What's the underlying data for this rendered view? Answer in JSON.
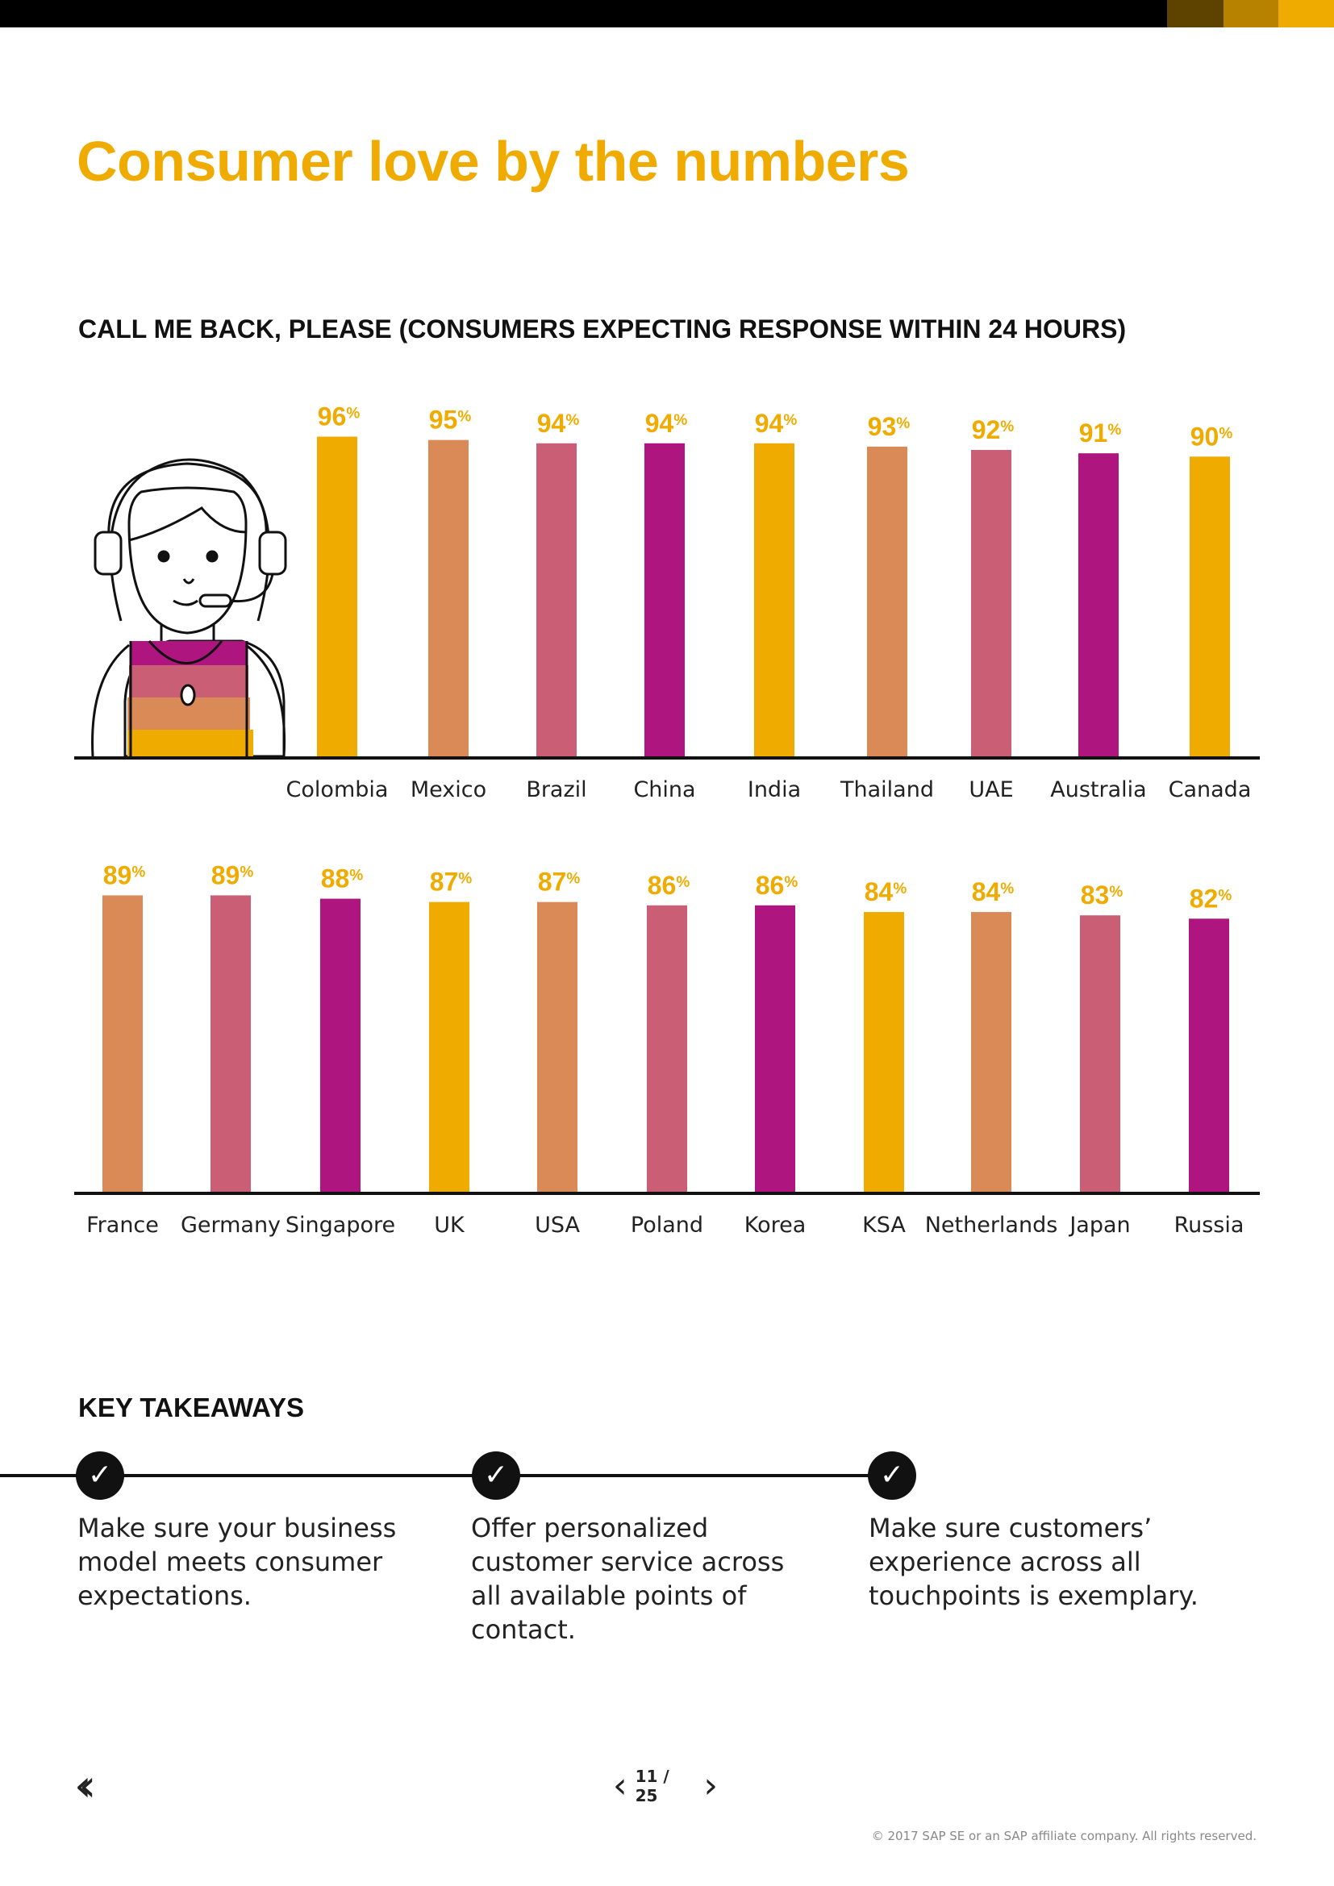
{
  "colors": {
    "accent": "#F0AB00",
    "orange": "#D98A57",
    "pink": "#C95E74",
    "magenta": "#AF157F",
    "gold_dark": "#5E4200",
    "gold_mid": "#B68200",
    "text": "#222222"
  },
  "header": {
    "title": "Consumer love by the numbers"
  },
  "illustration": {
    "icon": "customer-service-agent-icon"
  },
  "chart_data": [
    {
      "type": "bar",
      "title": "CALL ME BACK, PLEASE (CONSUMERS EXPECTING RESPONSE WITHIN 24 HOURS)",
      "categories": [
        "Colombia",
        "Mexico",
        "Brazil",
        "China",
        "India",
        "Thailand",
        "UAE",
        "Australia",
        "Canada"
      ],
      "values": [
        96,
        95,
        94,
        94,
        94,
        93,
        92,
        91,
        90
      ],
      "unit": "%",
      "xlabel": "",
      "ylabel": "",
      "ylim": [
        0,
        100
      ],
      "grid": false
    },
    {
      "type": "bar",
      "title": "",
      "categories": [
        "France",
        "Germany",
        "Singapore",
        "UK",
        "USA",
        "Poland",
        "Korea",
        "KSA",
        "Netherlands",
        "Japan",
        "Russia"
      ],
      "values": [
        89,
        89,
        88,
        87,
        87,
        86,
        86,
        84,
        84,
        83,
        82
      ],
      "unit": "%",
      "xlabel": "",
      "ylabel": "",
      "ylim": [
        0,
        100
      ],
      "grid": false
    }
  ],
  "takeaways": {
    "heading": "KEY TAKEAWAYS",
    "items": [
      "Make sure your business model meets consumer expectations.",
      "Offer personalized customer service across all available points of contact.",
      "Make sure customers’ experience across all touchpoints is exemplary."
    ]
  },
  "footer": {
    "back_icon": "double-chevron-left-icon",
    "prev_icon": "chevron-left-icon",
    "next_icon": "chevron-right-icon",
    "page_indicator": "11 / 25",
    "copyright": "© 2017 SAP SE or an SAP affiliate company. All rights reserved."
  }
}
